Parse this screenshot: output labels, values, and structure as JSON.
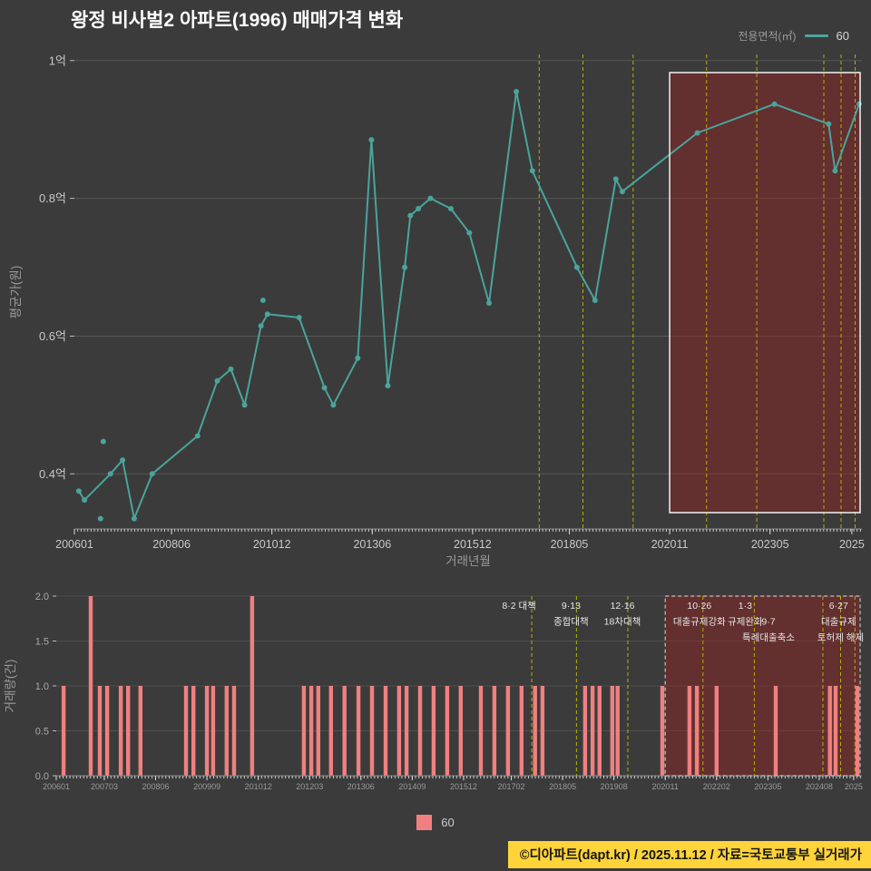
{
  "title": "왕정 비사벌2 아파트(1996) 매매가격 변화",
  "legend": {
    "label": "전용면적(㎡)",
    "value": "60"
  },
  "bottom_legend": {
    "label": "60"
  },
  "footer": "©디아파트(dapt.kr) / 2025.11.12 / 자료=국토교통부 실거래가",
  "colors": {
    "background": "#3b3b3b",
    "line": "#4aa49c",
    "bar": "#f08080",
    "policy_line": "#b3b300",
    "highlight_fill": "rgba(165,30,30,0.38)",
    "highlight_border": "#f2f2f2",
    "volume_highlight_border": "#c0c0c0",
    "grid": "#565656",
    "axis": "#8a8a8a",
    "tick": "#c9c9c9",
    "footer_bg": "#ffd43b"
  },
  "highlight": {
    "start": 2020.83
  },
  "policies": [
    {
      "t": 2017.58,
      "lines": [
        "8·2 대책"
      ],
      "row": 0,
      "dx": -14
    },
    {
      "t": 2018.67,
      "lines": [
        "9·13",
        "종합대책"
      ],
      "row": 0,
      "dx": -6
    },
    {
      "t": 2019.92,
      "lines": [
        "12·16",
        "18차대책"
      ],
      "row": 0,
      "dx": -6
    },
    {
      "t": 2021.75,
      "lines": [
        "10·26",
        "대출규제강화"
      ],
      "row": 0,
      "dx": -4
    },
    {
      "t": 2023.0,
      "lines": [
        "1·3",
        "규제완화"
      ],
      "row": 0,
      "dx": -10
    },
    {
      "t": 2024.67,
      "lines": [
        "9·7",
        "특례대출축소"
      ],
      "row": 1,
      "dx": -60
    },
    {
      "t": 2025.1,
      "lines": [
        "토허제 해제"
      ],
      "row": 2,
      "dx": 0
    },
    {
      "t": 2025.45,
      "lines": [
        "6·27",
        "대출규제"
      ],
      "row": 0,
      "dx": -18
    }
  ],
  "chart_data": [
    {
      "type": "line",
      "name": "매매가격 변화 (평균가, 억원)",
      "xlabel": "거래년월",
      "ylabel": "평균가(원)",
      "x_domain": [
        2006.0,
        2025.62
      ],
      "y_domain": [
        0.32,
        1.009
      ],
      "grid": true,
      "legend_position": "top-right",
      "y_ticks": [
        {
          "v": 0.4,
          "label": "0.4억"
        },
        {
          "v": 0.6,
          "label": "0.6억"
        },
        {
          "v": 0.8,
          "label": "0.8억"
        },
        {
          "v": 1.0,
          "label": "1억"
        }
      ],
      "x_ticks": [
        {
          "t": 2006.0,
          "label": "200601"
        },
        {
          "t": 2008.42,
          "label": "200806"
        },
        {
          "t": 2010.92,
          "label": "201012"
        },
        {
          "t": 2013.42,
          "label": "201306"
        },
        {
          "t": 2015.92,
          "label": "201512"
        },
        {
          "t": 2018.33,
          "label": "201805"
        },
        {
          "t": 2020.83,
          "label": "202011"
        },
        {
          "t": 2023.33,
          "label": "202305"
        },
        {
          "t": 2025.37,
          "label": "2025"
        }
      ],
      "series": [
        {
          "name": "60",
          "points": [
            [
              2006.11,
              0.375
            ],
            [
              2006.25,
              0.362
            ],
            [
              2006.9,
              0.4
            ],
            [
              2007.2,
              0.42
            ],
            [
              2007.49,
              0.335
            ],
            [
              2007.94,
              0.4
            ],
            [
              2009.07,
              0.455
            ],
            [
              2009.56,
              0.535
            ],
            [
              2009.9,
              0.552
            ],
            [
              2010.24,
              0.5
            ],
            [
              2010.65,
              0.615
            ],
            [
              2010.81,
              0.632
            ],
            [
              2011.6,
              0.627
            ],
            [
              2012.23,
              0.525
            ],
            [
              2012.45,
              0.5
            ],
            [
              2013.06,
              0.568
            ],
            [
              2013.4,
              0.885
            ],
            [
              2013.81,
              0.528
            ],
            [
              2014.23,
              0.7
            ],
            [
              2014.37,
              0.775
            ],
            [
              2014.57,
              0.785
            ],
            [
              2014.87,
              0.8
            ],
            [
              2015.38,
              0.785
            ],
            [
              2015.84,
              0.75
            ],
            [
              2016.33,
              0.648
            ],
            [
              2017.01,
              0.955
            ],
            [
              2017.41,
              0.84
            ],
            [
              2018.52,
              0.7
            ],
            [
              2018.97,
              0.652
            ],
            [
              2019.49,
              0.828
            ],
            [
              2019.65,
              0.81
            ],
            [
              2021.52,
              0.895
            ],
            [
              2023.44,
              0.937
            ],
            [
              2024.79,
              0.908
            ],
            [
              2024.95,
              0.84
            ],
            [
              2025.55,
              0.937
            ]
          ]
        }
      ],
      "isolated_points": [
        [
          2006.65,
          0.335
        ],
        [
          2006.72,
          0.447
        ],
        [
          2010.7,
          0.652
        ]
      ]
    },
    {
      "type": "bar",
      "name": "거래량",
      "ylabel": "거래량(건)",
      "ylim": [
        0,
        2
      ],
      "y_ticks": [
        {
          "v": 0.0,
          "label": "0.0"
        },
        {
          "v": 0.5,
          "label": "0.5"
        },
        {
          "v": 1.0,
          "label": "1.0"
        },
        {
          "v": 1.5,
          "label": "1.5"
        },
        {
          "v": 2.0,
          "label": "2.0"
        }
      ],
      "x_ticks": [
        {
          "t": 2006.0,
          "label": "200601"
        },
        {
          "t": 2007.17,
          "label": "200703"
        },
        {
          "t": 2008.42,
          "label": "200806"
        },
        {
          "t": 2009.67,
          "label": "200909"
        },
        {
          "t": 2010.92,
          "label": "201012"
        },
        {
          "t": 2012.17,
          "label": "201203"
        },
        {
          "t": 2013.42,
          "label": "201306"
        },
        {
          "t": 2014.67,
          "label": "201409"
        },
        {
          "t": 2015.92,
          "label": "201512"
        },
        {
          "t": 2017.08,
          "label": "201702"
        },
        {
          "t": 2018.33,
          "label": "201805"
        },
        {
          "t": 2019.58,
          "label": "201908"
        },
        {
          "t": 2020.83,
          "label": "202011"
        },
        {
          "t": 2022.08,
          "label": "202202"
        },
        {
          "t": 2023.33,
          "label": "202305"
        },
        {
          "t": 2024.58,
          "label": "202408"
        },
        {
          "t": 2025.42,
          "label": "2025"
        }
      ],
      "bars": [
        [
          2006.18,
          1
        ],
        [
          2006.84,
          2
        ],
        [
          2007.06,
          1
        ],
        [
          2007.24,
          1
        ],
        [
          2007.57,
          1
        ],
        [
          2007.75,
          1
        ],
        [
          2008.05,
          1
        ],
        [
          2009.16,
          1
        ],
        [
          2009.34,
          1
        ],
        [
          2009.67,
          1
        ],
        [
          2009.82,
          1
        ],
        [
          2010.15,
          1
        ],
        [
          2010.33,
          1
        ],
        [
          2010.77,
          2
        ],
        [
          2012.03,
          1
        ],
        [
          2012.21,
          1
        ],
        [
          2012.38,
          1
        ],
        [
          2012.69,
          1
        ],
        [
          2013.02,
          1
        ],
        [
          2013.36,
          1
        ],
        [
          2013.69,
          1
        ],
        [
          2014.02,
          1
        ],
        [
          2014.35,
          1
        ],
        [
          2014.53,
          1
        ],
        [
          2014.86,
          1
        ],
        [
          2015.19,
          1
        ],
        [
          2015.52,
          1
        ],
        [
          2015.85,
          1
        ],
        [
          2016.34,
          1
        ],
        [
          2016.67,
          1
        ],
        [
          2017.0,
          1
        ],
        [
          2017.33,
          1
        ],
        [
          2017.66,
          1
        ],
        [
          2017.84,
          1
        ],
        [
          2018.88,
          1
        ],
        [
          2019.06,
          1
        ],
        [
          2019.23,
          1
        ],
        [
          2019.54,
          1
        ],
        [
          2019.67,
          1
        ],
        [
          2020.76,
          1
        ],
        [
          2021.42,
          1
        ],
        [
          2021.6,
          1
        ],
        [
          2022.08,
          1
        ],
        [
          2023.52,
          1
        ],
        [
          2024.84,
          1
        ],
        [
          2024.98,
          1
        ],
        [
          2025.51,
          1
        ]
      ]
    }
  ]
}
